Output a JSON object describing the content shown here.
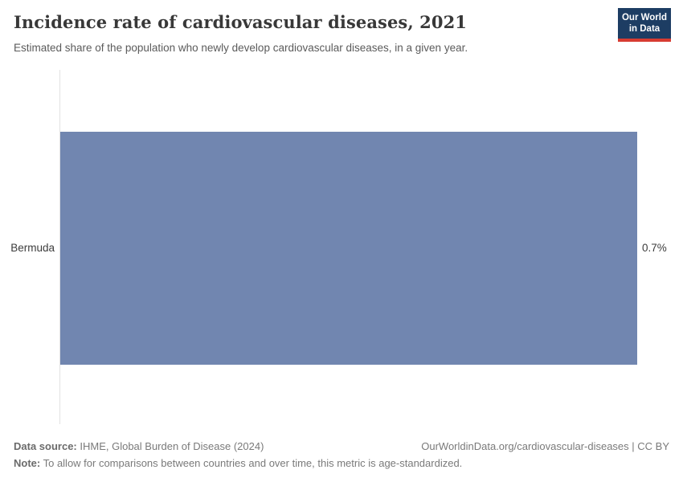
{
  "header": {
    "title": "Incidence rate of cardiovascular diseases, 2021",
    "subtitle": "Estimated share of the population who newly develop cardiovascular diseases, in a given year.",
    "logo": {
      "line1": "Our World",
      "line2": "in Data",
      "background_color": "#1d3d63",
      "accent_color": "#d73c32"
    }
  },
  "chart_data": {
    "type": "bar",
    "orientation": "horizontal",
    "title": "Incidence rate of cardiovascular diseases, 2021",
    "subtitle": "Estimated share of the population who newly develop cardiovascular diseases, in a given year.",
    "categories": [
      "Bermuda"
    ],
    "values": [
      0.7
    ],
    "value_labels": [
      "0.7%"
    ],
    "unit": "%",
    "xlim": [
      0,
      0.7
    ],
    "grid": false,
    "legend": "none",
    "bar_color": "#7186b0",
    "axis_line_color": "#e2e2e2"
  },
  "footer": {
    "data_source_label": "Data source:",
    "data_source_value": " IHME, Global Burden of Disease (2024)",
    "citation": "OurWorldinData.org/cardiovascular-diseases | CC BY",
    "note_label": "Note:",
    "note_value": " To allow for comparisons between countries and over time, this metric is age-standardized."
  }
}
